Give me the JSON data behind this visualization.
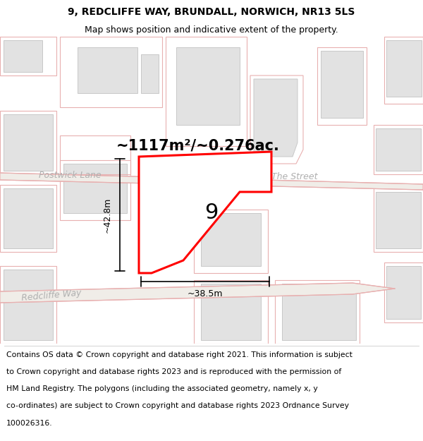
{
  "title": "9, REDCLIFFE WAY, BRUNDALL, NORWICH, NR13 5LS",
  "subtitle": "Map shows position and indicative extent of the property.",
  "area_text": "~1117m²/~0.276ac.",
  "label_9": "9",
  "dim_height": "~42.8m",
  "dim_width": "~38.5m",
  "street_label1": "Postwick Lane",
  "street_label2": "The Street",
  "street_label3": "Redcliffe Way",
  "footer_lines": [
    "Contains OS data © Crown copyright and database right 2021. This information is subject",
    "to Crown copyright and database rights 2023 and is reproduced with the permission of",
    "HM Land Registry. The polygons (including the associated geometry, namely x, y",
    "co-ordinates) are subject to Crown copyright and database rights 2023 Ordnance Survey",
    "100026316."
  ],
  "map_bg": "#f7f6f4",
  "highlight_color": "#ff0000",
  "building_fill": "#e2e2e2",
  "building_stroke": "#c8c8c8",
  "road_outline": "#e8a8a8",
  "road_fill": "#f0ebe8",
  "title_fontsize": 10,
  "subtitle_fontsize": 9,
  "area_fontsize": 15,
  "street_fontsize": 9,
  "label9_fontsize": 22,
  "dim_fontsize": 9,
  "footer_fontsize": 7.8
}
